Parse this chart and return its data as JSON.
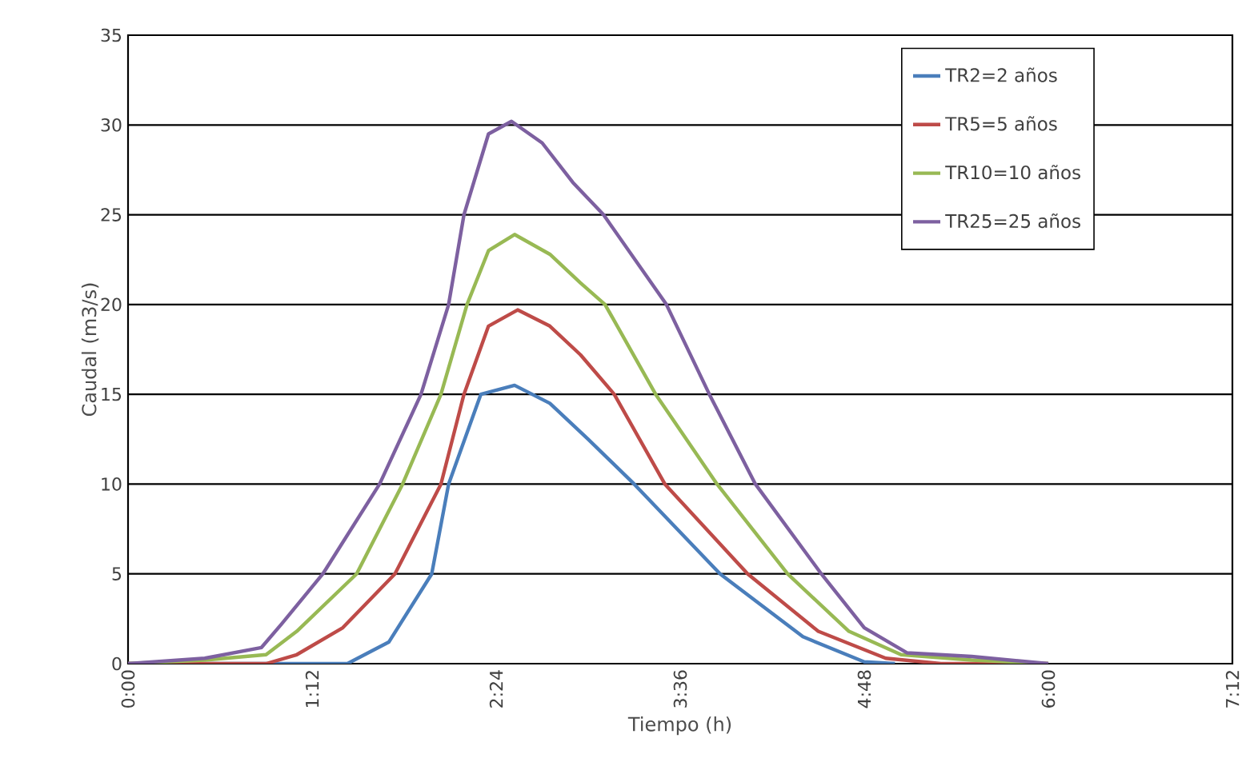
{
  "chart_data": {
    "type": "line",
    "xlabel": "Tiempo (h)",
    "ylabel": "Caudal (m3/s)",
    "xlim": [
      0,
      7.2
    ],
    "xticks": [
      {
        "value": 0,
        "label": "0:00"
      },
      {
        "value": 1.2,
        "label": "1:12"
      },
      {
        "value": 2.4,
        "label": "2:24"
      },
      {
        "value": 3.6,
        "label": "3:36"
      },
      {
        "value": 4.8,
        "label": "4:48"
      },
      {
        "value": 6.0,
        "label": "6:00"
      },
      {
        "value": 7.2,
        "label": "7:12"
      }
    ],
    "ylim": [
      0,
      35
    ],
    "yticks": [
      0,
      5,
      10,
      15,
      20,
      25,
      30,
      35
    ],
    "grid": "y",
    "legend": "top right",
    "series": [
      {
        "name": "TR2=2 años",
        "color": "#4a7ebb",
        "x": [
          0,
          1.43,
          1.7,
          1.98,
          2.09,
          2.3,
          2.52,
          2.75,
          3.0,
          3.3,
          3.86,
          4.4,
          4.8,
          5.0
        ],
        "values": [
          0,
          0,
          1.2,
          5,
          10,
          15,
          15.5,
          14.5,
          12.5,
          10,
          5,
          1.5,
          0.1,
          0
        ]
      },
      {
        "name": "TR5=5 años",
        "color": "#be4b48",
        "x": [
          0,
          0.9,
          1.1,
          1.4,
          1.74,
          2.04,
          2.19,
          2.35,
          2.54,
          2.75,
          2.95,
          3.17,
          3.5,
          4.04,
          4.5,
          4.94,
          5.3,
          6.0
        ],
        "values": [
          0,
          0,
          0.5,
          2,
          5,
          10,
          15,
          18.8,
          19.7,
          18.8,
          17.2,
          15,
          10,
          5,
          1.8,
          0.3,
          0,
          0
        ]
      },
      {
        "name": "TR10=10 años",
        "color": "#98b954",
        "x": [
          0,
          0.5,
          0.9,
          1.1,
          1.49,
          1.79,
          2.04,
          2.21,
          2.35,
          2.52,
          2.75,
          2.95,
          3.11,
          3.44,
          3.84,
          4.3,
          4.7,
          5.04,
          5.5,
          6.0
        ],
        "values": [
          0,
          0.2,
          0.5,
          1.8,
          5,
          10,
          15,
          20,
          23,
          23.9,
          22.8,
          21.2,
          20,
          15,
          10,
          5,
          1.8,
          0.5,
          0.2,
          0
        ]
      },
      {
        "name": "TR25=25 años",
        "color": "#7d60a0",
        "x": [
          0,
          0.5,
          0.87,
          1.0,
          1.27,
          1.64,
          1.91,
          2.09,
          2.19,
          2.35,
          2.5,
          2.7,
          2.9,
          3.1,
          3.51,
          3.79,
          4.09,
          4.52,
          4.8,
          5.08,
          5.5,
          6.0
        ],
        "values": [
          0,
          0.3,
          0.9,
          2.2,
          5,
          10,
          15,
          20,
          25,
          29.5,
          30.2,
          29,
          26.8,
          25,
          20,
          15,
          10,
          5,
          2,
          0.6,
          0.4,
          0
        ]
      }
    ]
  }
}
